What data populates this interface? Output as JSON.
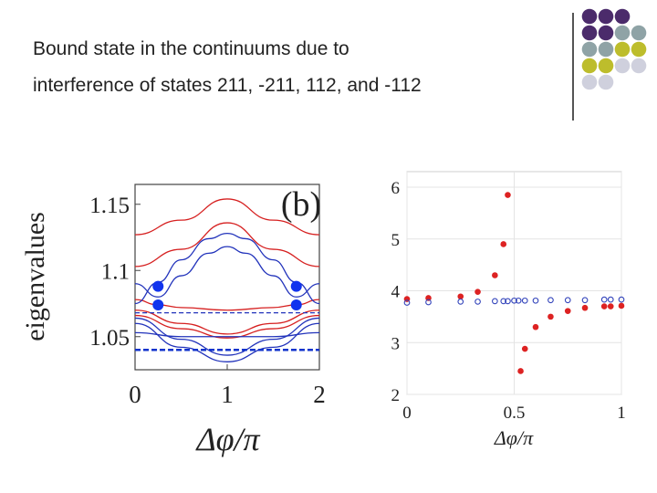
{
  "slide": {
    "title_line1": "Bound state in the continuums due to",
    "title_line2": "interference of states 211, -211, 112, and -112"
  },
  "decoration": {
    "colors": [
      "#4b2b6b",
      "#8fa3a6",
      "#bdbd2c",
      "#cfd0dd"
    ]
  },
  "chart_data": [
    {
      "type": "line",
      "panel_label": "(b)",
      "xlabel": "Δφ/π",
      "ylabel": "eigenvalues",
      "xlim": [
        0,
        2
      ],
      "ylim": [
        1.025,
        1.165
      ],
      "xticks": [
        "0",
        "1",
        "2"
      ],
      "yticks": [
        "1.15",
        "1.1",
        "1.05"
      ],
      "series": [
        {
          "name": "red-band-1",
          "color": "#d62020",
          "points": [
            [
              0,
              1.127
            ],
            [
              0.5,
              1.138
            ],
            [
              1,
              1.154
            ],
            [
              1.5,
              1.138
            ],
            [
              2,
              1.127
            ]
          ]
        },
        {
          "name": "red-band-2",
          "color": "#d62020",
          "points": [
            [
              0,
              1.103
            ],
            [
              0.5,
              1.116
            ],
            [
              1,
              1.136
            ],
            [
              1.5,
              1.116
            ],
            [
              2,
              1.103
            ]
          ]
        },
        {
          "name": "red-band-3",
          "color": "#d62020",
          "points": [
            [
              0,
              1.078
            ],
            [
              0.25,
              1.074
            ],
            [
              0.5,
              1.072
            ],
            [
              1,
              1.07
            ],
            [
              1.5,
              1.072
            ],
            [
              1.75,
              1.074
            ],
            [
              2,
              1.078
            ]
          ]
        },
        {
          "name": "red-band-4",
          "color": "#d62020",
          "points": [
            [
              0,
              1.07
            ],
            [
              0.5,
              1.06
            ],
            [
              1,
              1.052
            ],
            [
              1.5,
              1.06
            ],
            [
              2,
              1.07
            ]
          ]
        },
        {
          "name": "red-band-5",
          "color": "#d62020",
          "points": [
            [
              0,
              1.066
            ],
            [
              0.5,
              1.056
            ],
            [
              1,
              1.049
            ],
            [
              1.5,
              1.056
            ],
            [
              2,
              1.066
            ]
          ]
        },
        {
          "name": "blue-band-1",
          "color": "#2233bb",
          "points": [
            [
              0,
              1.075
            ],
            [
              0.25,
              1.091
            ],
            [
              0.5,
              1.108
            ],
            [
              0.8,
              1.124
            ],
            [
              1,
              1.128
            ],
            [
              1.2,
              1.124
            ],
            [
              1.5,
              1.108
            ],
            [
              1.75,
              1.091
            ],
            [
              2,
              1.075
            ]
          ]
        },
        {
          "name": "blue-band-2",
          "color": "#2233bb",
          "points": [
            [
              0,
              1.09
            ],
            [
              0.25,
              1.08
            ],
            [
              0.5,
              1.096
            ],
            [
              0.8,
              1.113
            ],
            [
              1,
              1.118
            ],
            [
              1.2,
              1.113
            ],
            [
              1.5,
              1.096
            ],
            [
              1.75,
              1.08
            ],
            [
              2,
              1.09
            ]
          ]
        },
        {
          "name": "blue-band-3",
          "color": "#2233bb",
          "points": [
            [
              0,
              1.053
            ],
            [
              0.5,
              1.05
            ],
            [
              1,
              1.05
            ],
            [
              1.5,
              1.05
            ],
            [
              2,
              1.053
            ]
          ]
        },
        {
          "name": "blue-band-4",
          "color": "#2233bb",
          "points": [
            [
              0,
              1.064
            ],
            [
              0.5,
              1.048
            ],
            [
              1,
              1.036
            ],
            [
              1.5,
              1.048
            ],
            [
              2,
              1.064
            ]
          ]
        },
        {
          "name": "blue-band-5",
          "color": "#2233bb",
          "points": [
            [
              0,
              1.06
            ],
            [
              0.5,
              1.042
            ],
            [
              1,
              1.031
            ],
            [
              1.5,
              1.042
            ],
            [
              2,
              1.06
            ]
          ]
        },
        {
          "name": "dashed-1",
          "color": "#2233bb",
          "dash": "thin",
          "points": [
            [
              0,
              1.068
            ],
            [
              2,
              1.068
            ]
          ]
        },
        {
          "name": "dashed-2",
          "color": "#1133cc",
          "dash": "thick",
          "points": [
            [
              0,
              1.04
            ],
            [
              2,
              1.04
            ]
          ]
        }
      ],
      "markers": [
        [
          0.25,
          1.088
        ],
        [
          0.25,
          1.074
        ],
        [
          1.75,
          1.088
        ],
        [
          1.75,
          1.074
        ]
      ]
    },
    {
      "type": "scatter",
      "xlabel": "Δφ/π",
      "xlim": [
        0,
        1
      ],
      "ylim": [
        2,
        6.3
      ],
      "xticks": [
        "0",
        "0.5",
        "1"
      ],
      "yticks": [
        "2",
        "3",
        "4",
        "5",
        "6"
      ],
      "series": [
        {
          "name": "red",
          "color": "#dd2222",
          "filled": true,
          "points": [
            [
              0,
              3.84
            ],
            [
              0.1,
              3.86
            ],
            [
              0.25,
              3.89
            ],
            [
              0.33,
              3.98
            ],
            [
              0.41,
              4.3
            ],
            [
              0.45,
              4.9
            ],
            [
              0.47,
              5.85
            ],
            [
              0.53,
              2.45
            ],
            [
              0.55,
              2.88
            ],
            [
              0.6,
              3.3
            ],
            [
              0.67,
              3.5
            ],
            [
              0.75,
              3.61
            ],
            [
              0.83,
              3.67
            ],
            [
              0.92,
              3.7
            ],
            [
              0.95,
              3.7
            ],
            [
              1.0,
              3.71
            ]
          ]
        },
        {
          "name": "blue",
          "color": "#3344bb",
          "filled": false,
          "points": [
            [
              0,
              3.77
            ],
            [
              0.1,
              3.78
            ],
            [
              0.25,
              3.79
            ],
            [
              0.33,
              3.79
            ],
            [
              0.41,
              3.8
            ],
            [
              0.45,
              3.8
            ],
            [
              0.47,
              3.8
            ],
            [
              0.5,
              3.81
            ],
            [
              0.52,
              3.81
            ],
            [
              0.55,
              3.81
            ],
            [
              0.6,
              3.81
            ],
            [
              0.67,
              3.82
            ],
            [
              0.75,
              3.82
            ],
            [
              0.83,
              3.82
            ],
            [
              0.92,
              3.83
            ],
            [
              0.95,
              3.83
            ],
            [
              1.0,
              3.83
            ]
          ]
        }
      ]
    }
  ]
}
